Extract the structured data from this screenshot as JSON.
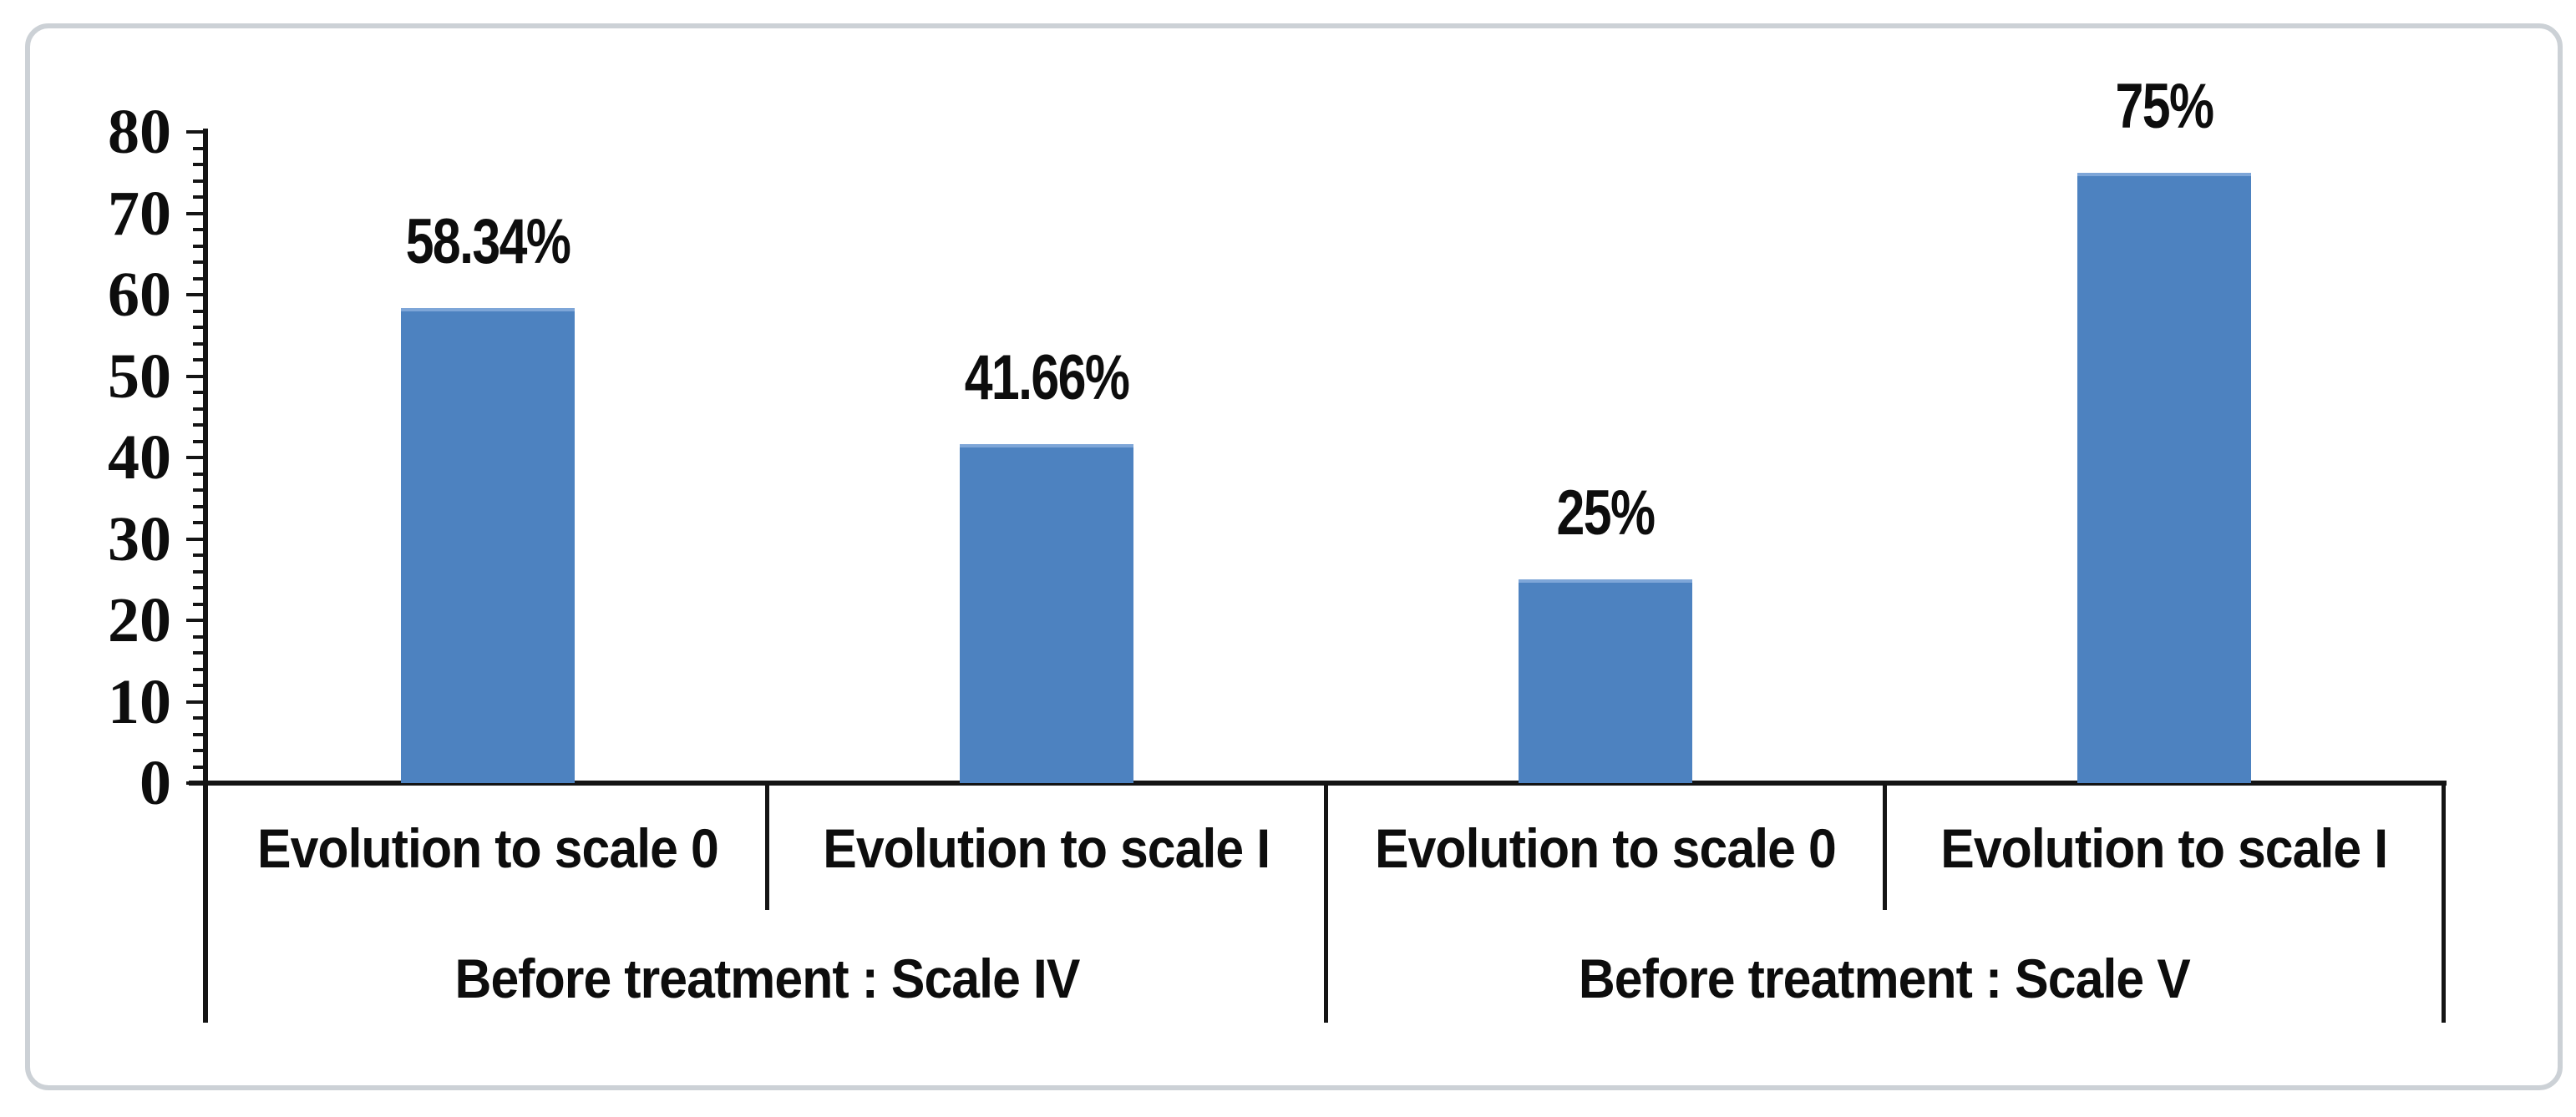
{
  "chart_data": {
    "type": "bar",
    "title": "",
    "xlabel": "",
    "ylabel": "",
    "ylim": [
      0,
      80
    ],
    "yticks": [
      0,
      10,
      20,
      30,
      40,
      50,
      60,
      70,
      80
    ],
    "minor_tick_step": 2,
    "grid": false,
    "legend": null,
    "bar_color": "#4d82c0",
    "bar_highlight_color": "#7ea6d8",
    "axis_color": "#141414",
    "text_color": "#0d0d0d",
    "frame_border_color": "#ccd1d6",
    "background_color": "#ffffff",
    "categories": [
      "Evolution to scale 0",
      "Evolution to scale I",
      "Evolution to scale 0",
      "Evolution to scale I"
    ],
    "values": [
      58.34,
      41.66,
      25,
      75
    ],
    "value_labels": [
      "58.34%",
      "41.66%",
      "25%",
      "75%"
    ],
    "groups": [
      {
        "label": "Before treatment : Scale IV",
        "categories": [
          "Evolution to scale 0",
          "Evolution to scale I"
        ],
        "values": [
          58.34,
          41.66
        ],
        "value_labels": [
          "58.34%",
          "41.66%"
        ]
      },
      {
        "label": "Before treatment : Scale V",
        "categories": [
          "Evolution to scale 0",
          "Evolution to scale I"
        ],
        "values": [
          25,
          75
        ],
        "value_labels": [
          "25%",
          "75%"
        ]
      }
    ]
  }
}
